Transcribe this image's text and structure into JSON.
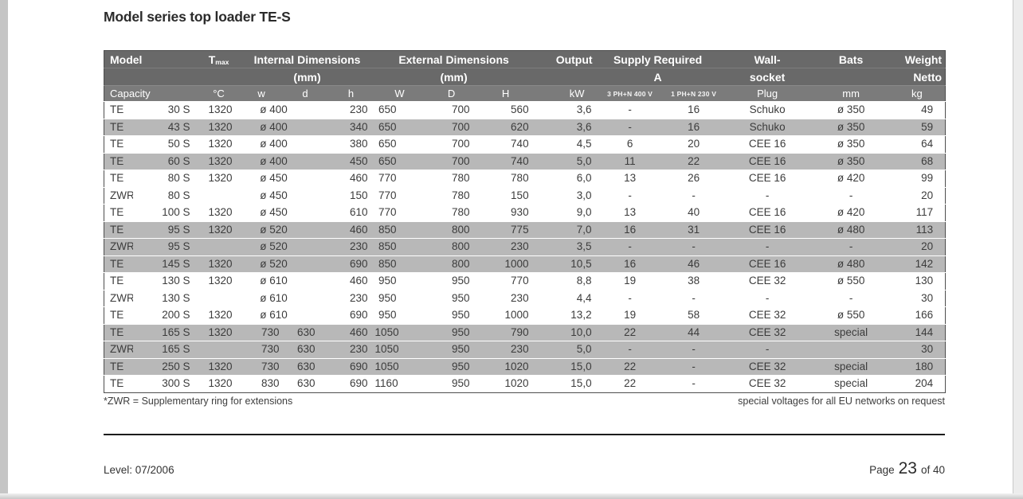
{
  "page": {
    "title": "Model series top loader TE-S",
    "footnote_left": "*ZWR = Supplementary ring for extensions",
    "footnote_right": "special voltages for all EU networks on request",
    "footer_left": "Level: 07/2006",
    "footer_page_label": "Page",
    "footer_page_number": "23",
    "footer_page_suffix": "of 40"
  },
  "colors": {
    "header_bg": "#696969",
    "header_bg_light": "#7b7b7b",
    "header_text": "#ffffff",
    "row_shade": "#b8b8b8",
    "body_text": "#3c3c3c",
    "table_border": "#4e4e4e",
    "divider": "#1c1c1c",
    "gutter": "#c5c5c5"
  },
  "table": {
    "header": {
      "model": "Model",
      "tmax_t": "T",
      "tmax_sub": "max",
      "internal": "Internal Dimensions",
      "external": "External Dimensions",
      "output": "Output",
      "supply": "Supply Required",
      "wall_1": "Wall-",
      "bats": "Bats",
      "weight": "Weight",
      "internal_unit": "(mm)",
      "external_unit": "(mm)",
      "supply_unit": "A",
      "wall_2": "socket",
      "weight_2": "Netto",
      "capacity": "Capacity",
      "deg_c": "°C",
      "w": "w",
      "d": "d",
      "h": "h",
      "W": "W",
      "D": "D",
      "H": "H",
      "kw": "kW",
      "a400": "3 PH+N 400 V",
      "a230": "1 PH+N 230 V",
      "plug": "Plug",
      "mm": "mm",
      "kg": "kg"
    },
    "rows": [
      {
        "type": "TE",
        "size": "30 S",
        "tmax": "1320",
        "dia": true,
        "w": "ø 400",
        "d": "",
        "h": "230",
        "W": "650",
        "D": "700",
        "H": "560",
        "kw": "3,6",
        "a400": "-",
        "a230": "16",
        "plug": "Schuko",
        "bats": "ø 350",
        "kg": "49",
        "shade": false
      },
      {
        "type": "TE",
        "size": "43 S",
        "tmax": "1320",
        "dia": true,
        "w": "ø 400",
        "d": "",
        "h": "340",
        "W": "650",
        "D": "700",
        "H": "620",
        "kw": "3,6",
        "a400": "-",
        "a230": "16",
        "plug": "Schuko",
        "bats": "ø 350",
        "kg": "59",
        "shade": true
      },
      {
        "type": "TE",
        "size": "50 S",
        "tmax": "1320",
        "dia": true,
        "w": "ø 400",
        "d": "",
        "h": "380",
        "W": "650",
        "D": "700",
        "H": "740",
        "kw": "4,5",
        "a400": "6",
        "a230": "20",
        "plug": "CEE 16",
        "bats": "ø 350",
        "kg": "64",
        "shade": false
      },
      {
        "type": "TE",
        "size": "60 S",
        "tmax": "1320",
        "dia": true,
        "w": "ø 400",
        "d": "",
        "h": "450",
        "W": "650",
        "D": "700",
        "H": "740",
        "kw": "5,0",
        "a400": "11",
        "a230": "22",
        "plug": "CEE 16",
        "bats": "ø 350",
        "kg": "68",
        "shade": true
      },
      {
        "type": "TE",
        "size": "80 S",
        "tmax": "1320",
        "dia": true,
        "w": "ø 450",
        "d": "",
        "h": "460",
        "W": "770",
        "D": "780",
        "H": "780",
        "kw": "6,0",
        "a400": "13",
        "a230": "26",
        "plug": "CEE 16",
        "bats": "ø 420",
        "kg": "99",
        "shade": false
      },
      {
        "type": "ZWR",
        "size": "80 S",
        "tmax": "",
        "dia": true,
        "w": "ø 450",
        "d": "",
        "h": "150",
        "W": "770",
        "D": "780",
        "H": "150",
        "kw": "3,0",
        "a400": "-",
        "a230": "-",
        "plug": "-",
        "bats": "-",
        "kg": "20",
        "shade": false
      },
      {
        "type": "TE",
        "size": "100 S",
        "tmax": "1320",
        "dia": true,
        "w": "ø 450",
        "d": "",
        "h": "610",
        "W": "770",
        "D": "780",
        "H": "930",
        "kw": "9,0",
        "a400": "13",
        "a230": "40",
        "plug": "CEE 16",
        "bats": "ø 420",
        "kg": "117",
        "shade": false
      },
      {
        "type": "TE",
        "size": "95 S",
        "tmax": "1320",
        "dia": true,
        "w": "ø 520",
        "d": "",
        "h": "460",
        "W": "850",
        "D": "800",
        "H": "775",
        "kw": "7,0",
        "a400": "16",
        "a230": "31",
        "plug": "CEE 16",
        "bats": "ø 480",
        "kg": "113",
        "shade": true
      },
      {
        "type": "ZWR",
        "size": "95 S",
        "tmax": "",
        "dia": true,
        "w": "ø 520",
        "d": "",
        "h": "230",
        "W": "850",
        "D": "800",
        "H": "230",
        "kw": "3,5",
        "a400": "-",
        "a230": "-",
        "plug": "-",
        "bats": "-",
        "kg": "20",
        "shade": true
      },
      {
        "type": "TE",
        "size": "145 S",
        "tmax": "1320",
        "dia": true,
        "w": "ø 520",
        "d": "",
        "h": "690",
        "W": "850",
        "D": "800",
        "H": "1000",
        "kw": "10,5",
        "a400": "16",
        "a230": "46",
        "plug": "CEE 16",
        "bats": "ø 480",
        "kg": "142",
        "shade": true
      },
      {
        "type": "TE",
        "size": "130 S",
        "tmax": "1320",
        "dia": true,
        "w": "ø 610",
        "d": "",
        "h": "460",
        "W": "950",
        "D": "950",
        "H": "770",
        "kw": "8,8",
        "a400": "19",
        "a230": "38",
        "plug": "CEE 32",
        "bats": "ø 550",
        "kg": "130",
        "shade": false
      },
      {
        "type": "ZWR",
        "size": "130 S",
        "tmax": "",
        "dia": true,
        "w": "ø 610",
        "d": "",
        "h": "230",
        "W": "950",
        "D": "950",
        "H": "230",
        "kw": "4,4",
        "a400": "-",
        "a230": "-",
        "plug": "-",
        "bats": "-",
        "kg": "30",
        "shade": false
      },
      {
        "type": "TE",
        "size": "200 S",
        "tmax": "1320",
        "dia": true,
        "w": "ø 610",
        "d": "",
        "h": "690",
        "W": "950",
        "D": "950",
        "H": "1000",
        "kw": "13,2",
        "a400": "19",
        "a230": "58",
        "plug": "CEE 32",
        "bats": "ø 550",
        "kg": "166",
        "shade": false
      },
      {
        "type": "TE",
        "size": "165 S",
        "tmax": "1320",
        "dia": false,
        "w": "730",
        "d": "630",
        "h": "460",
        "W": "1050",
        "D": "950",
        "H": "790",
        "kw": "10,0",
        "a400": "22",
        "a230": "44",
        "plug": "CEE 32",
        "bats": "special",
        "kg": "144",
        "shade": true
      },
      {
        "type": "ZWR",
        "size": "165 S",
        "tmax": "",
        "dia": false,
        "w": "730",
        "d": "630",
        "h": "230",
        "W": "1050",
        "D": "950",
        "H": "230",
        "kw": "5,0",
        "a400": "-",
        "a230": "-",
        "plug": "-",
        "bats": "",
        "kg": "30",
        "shade": true
      },
      {
        "type": "TE",
        "size": "250 S",
        "tmax": "1320",
        "dia": false,
        "w": "730",
        "d": "630",
        "h": "690",
        "W": "1050",
        "D": "950",
        "H": "1020",
        "kw": "15,0",
        "a400": "22",
        "a230": "-",
        "plug": "CEE 32",
        "bats": "special",
        "kg": "180",
        "shade": true
      },
      {
        "type": "TE",
        "size": "300 S",
        "tmax": "1320",
        "dia": false,
        "w": "830",
        "d": "630",
        "h": "690",
        "W": "1160",
        "D": "950",
        "H": "1020",
        "kw": "15,0",
        "a400": "22",
        "a230": "-",
        "plug": "CEE 32",
        "bats": "special",
        "kg": "204",
        "shade": false
      }
    ]
  }
}
